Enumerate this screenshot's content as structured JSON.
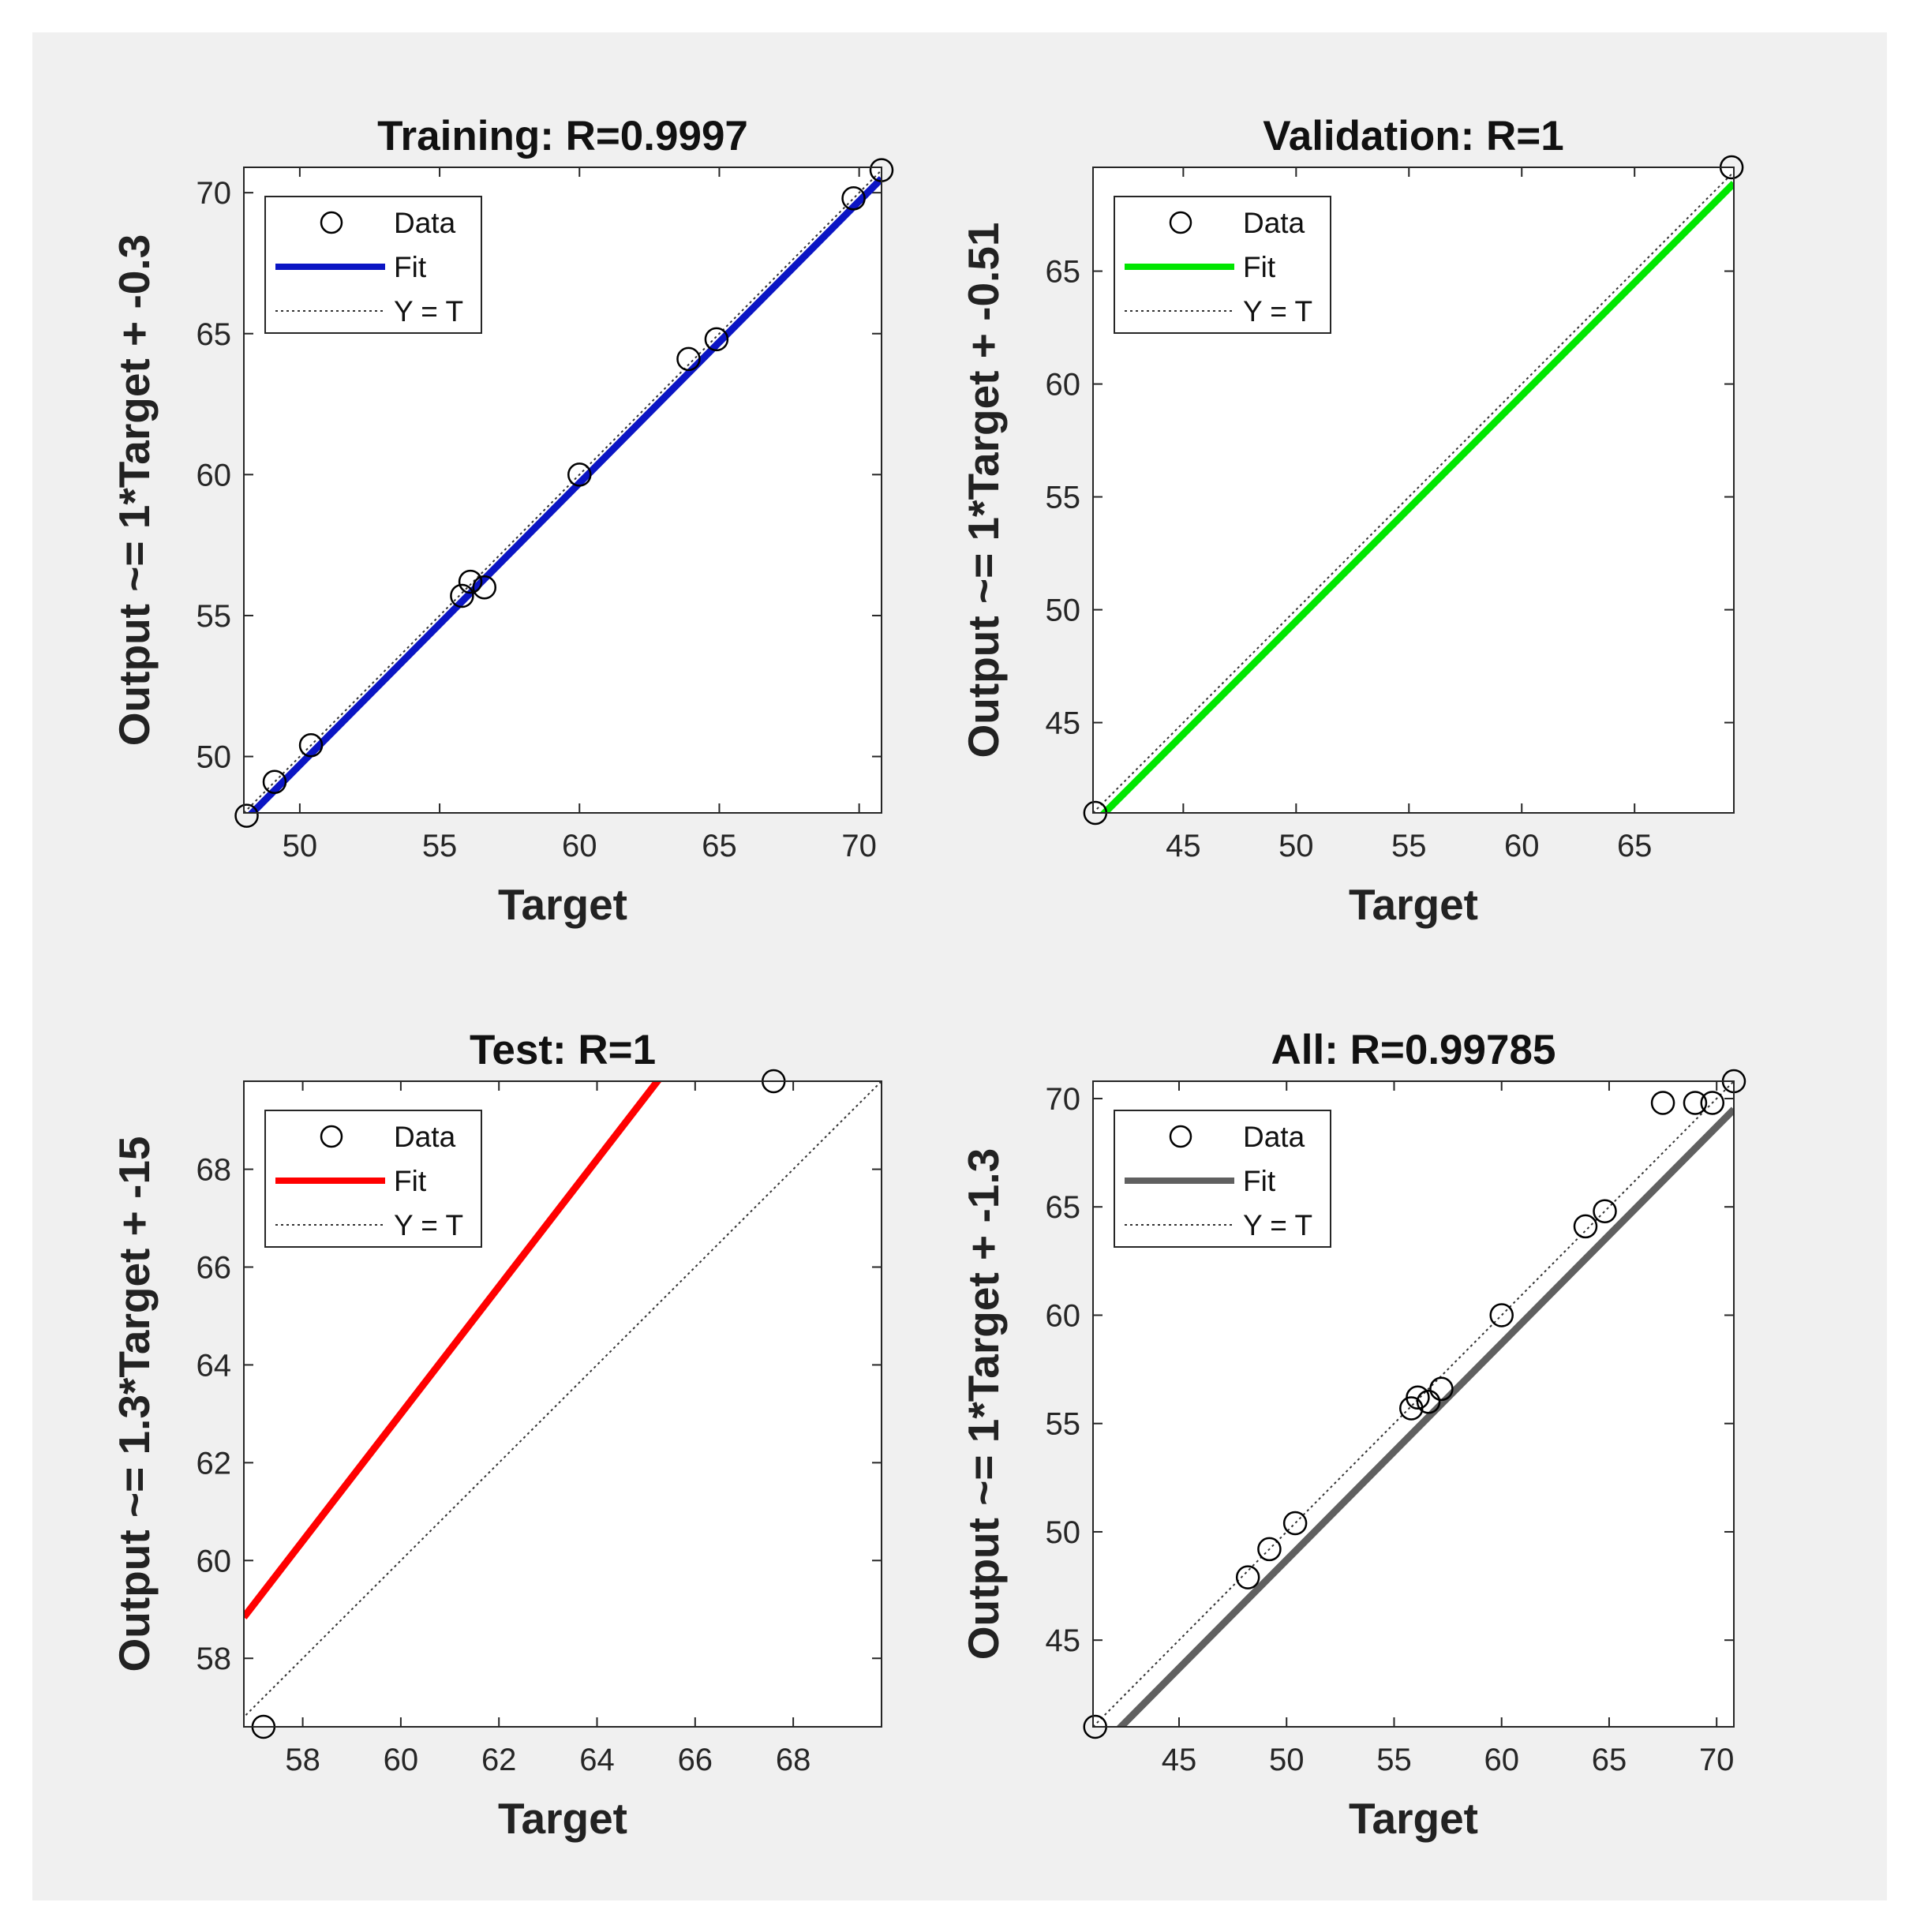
{
  "chart_data": [
    {
      "type": "scatter",
      "title": "Training: R=0.9997",
      "xlabel": "Target",
      "ylabel": "Output ~= 1*Target + -0.3",
      "xlim": [
        48,
        70.8
      ],
      "ylim": [
        48,
        70.9
      ],
      "xticks": [
        50,
        55,
        60,
        65,
        70
      ],
      "yticks": [
        50,
        55,
        60,
        65,
        70
      ],
      "legend": [
        "Data",
        "Fit",
        "Y = T"
      ],
      "legend_position": "top-left",
      "fit": {
        "slope": 1,
        "intercept": -0.3,
        "color": "#0b15c4"
      },
      "series": [
        {
          "name": "Data",
          "x": [
            48.1,
            49.1,
            50.4,
            55.8,
            56.1,
            56.6,
            60,
            63.9,
            64.9,
            69.8,
            70.8
          ],
          "y": [
            47.9,
            49.1,
            50.4,
            55.7,
            56.2,
            56,
            60,
            64.1,
            64.8,
            69.8,
            70.8
          ]
        }
      ]
    },
    {
      "type": "scatter",
      "title": "Validation: R=1",
      "xlabel": "Target",
      "ylabel": "Output ~= 1*Target + -0.51",
      "xlim": [
        41,
        69.4
      ],
      "ylim": [
        41,
        69.6
      ],
      "xticks": [
        45,
        50,
        55,
        60,
        65
      ],
      "yticks": [
        45,
        50,
        55,
        60,
        65
      ],
      "legend": [
        "Data",
        "Fit",
        "Y = T"
      ],
      "legend_position": "top-left",
      "fit": {
        "slope": 1,
        "intercept": -0.51,
        "color": "#00e600"
      },
      "series": [
        {
          "name": "Data",
          "x": [
            41.1,
            69.3
          ],
          "y": [
            41,
            69.6
          ]
        }
      ]
    },
    {
      "type": "scatter",
      "title": "Test: R=1",
      "xlabel": "Target",
      "ylabel": "Output ~= 1.3*Target + -15",
      "xlim": [
        56.8,
        69.8
      ],
      "ylim": [
        56.6,
        69.8
      ],
      "xticks": [
        58,
        60,
        62,
        64,
        66,
        68
      ],
      "yticks": [
        58,
        60,
        62,
        64,
        66,
        68
      ],
      "legend": [
        "Data",
        "Fit",
        "Y = T"
      ],
      "legend_position": "top-left",
      "fit": {
        "slope": 1.3,
        "intercept": -15,
        "color": "#ff0000"
      },
      "series": [
        {
          "name": "Data",
          "x": [
            57.2,
            67.6
          ],
          "y": [
            56.6,
            69.8
          ]
        }
      ]
    },
    {
      "type": "scatter",
      "title": "All: R=0.99785",
      "xlabel": "Target",
      "ylabel": "Output ~= 1*Target + -1.3",
      "xlim": [
        41,
        70.8
      ],
      "ylim": [
        41,
        70.8
      ],
      "xticks": [
        45,
        50,
        55,
        60,
        65,
        70
      ],
      "yticks": [
        45,
        50,
        55,
        60,
        65,
        70
      ],
      "legend": [
        "Data",
        "Fit",
        "Y = T"
      ],
      "legend_position": "top-left",
      "fit": {
        "slope": 1,
        "intercept": -1.3,
        "color": "#606060"
      },
      "series": [
        {
          "name": "Data",
          "x": [
            41.1,
            48.2,
            49.2,
            50.4,
            55.8,
            56.1,
            56.6,
            57.2,
            60,
            63.9,
            64.8,
            67.5,
            69,
            69.8,
            70.8
          ],
          "y": [
            41,
            47.9,
            49.2,
            50.4,
            55.7,
            56.2,
            56,
            56.6,
            60,
            64.1,
            64.8,
            69.8,
            69.8,
            69.8,
            70.8
          ]
        }
      ]
    }
  ]
}
